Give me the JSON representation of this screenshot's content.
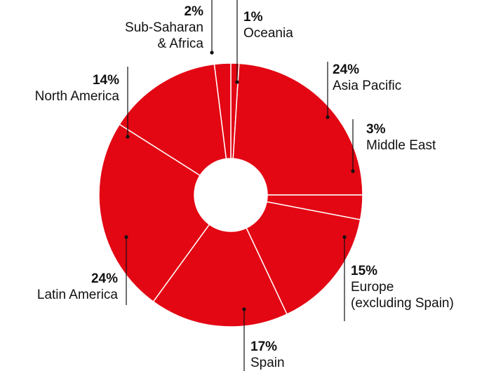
{
  "chart_data": {
    "type": "pie",
    "donut": true,
    "title": "",
    "slice_color": "#E30613",
    "separator_color": "#ffffff",
    "text_color": "#111111",
    "slices": [
      {
        "pct_label": "1%",
        "value": 1,
        "name_lines": [
          "Oceania"
        ]
      },
      {
        "pct_label": "24%",
        "value": 24,
        "name_lines": [
          "Asia Pacific"
        ]
      },
      {
        "pct_label": "3%",
        "value": 3,
        "name_lines": [
          "Middle East"
        ]
      },
      {
        "pct_label": "15%",
        "value": 15,
        "name_lines": [
          "Europe",
          "(excluding Spain)"
        ]
      },
      {
        "pct_label": "17%",
        "value": 17,
        "name_lines": [
          "Spain"
        ]
      },
      {
        "pct_label": "24%",
        "value": 24,
        "name_lines": [
          "Latin America"
        ]
      },
      {
        "pct_label": "14%",
        "value": 14,
        "name_lines": [
          "North America"
        ]
      },
      {
        "pct_label": "2%",
        "value": 2,
        "name_lines": [
          "Sub-Saharan",
          "& Africa"
        ]
      }
    ]
  }
}
